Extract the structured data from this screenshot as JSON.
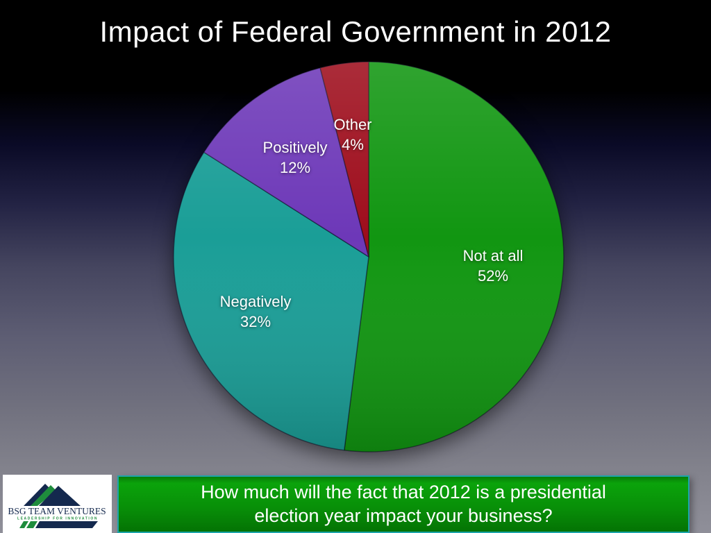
{
  "slide": {
    "title": "Impact of Federal Government in 2012"
  },
  "chart_data": {
    "type": "pie",
    "title": "Impact of Federal Government in 2012",
    "unit": "%",
    "start_angle_deg": 0,
    "direction": "clockwise",
    "slices": [
      {
        "label": "Not at all",
        "value": 52,
        "color": "#119611"
      },
      {
        "label": "Negatively",
        "value": 32,
        "color": "#1a9e97"
      },
      {
        "label": "Positively",
        "value": 12,
        "color": "#6d38b8"
      },
      {
        "label": "Other",
        "value": 4,
        "color": "#9e0d1c"
      }
    ]
  },
  "question_banner": {
    "line1": "How much will the fact that 2012 is a presidential",
    "line2": "election year impact your business?"
  },
  "logo": {
    "company": "BSG TEAM VENTURES",
    "tagline": "LEADERSHIP FOR INNOVATION"
  },
  "colors": {
    "background_top": "#000000",
    "background_bottom": "#8f8f99",
    "banner_green_top": "#0ba30b",
    "banner_green_bottom": "#047304",
    "banner_border": "#1da4aa",
    "logo_navy": "#14294e",
    "logo_green": "#1e8c3c",
    "label_text": "#ffffff"
  }
}
